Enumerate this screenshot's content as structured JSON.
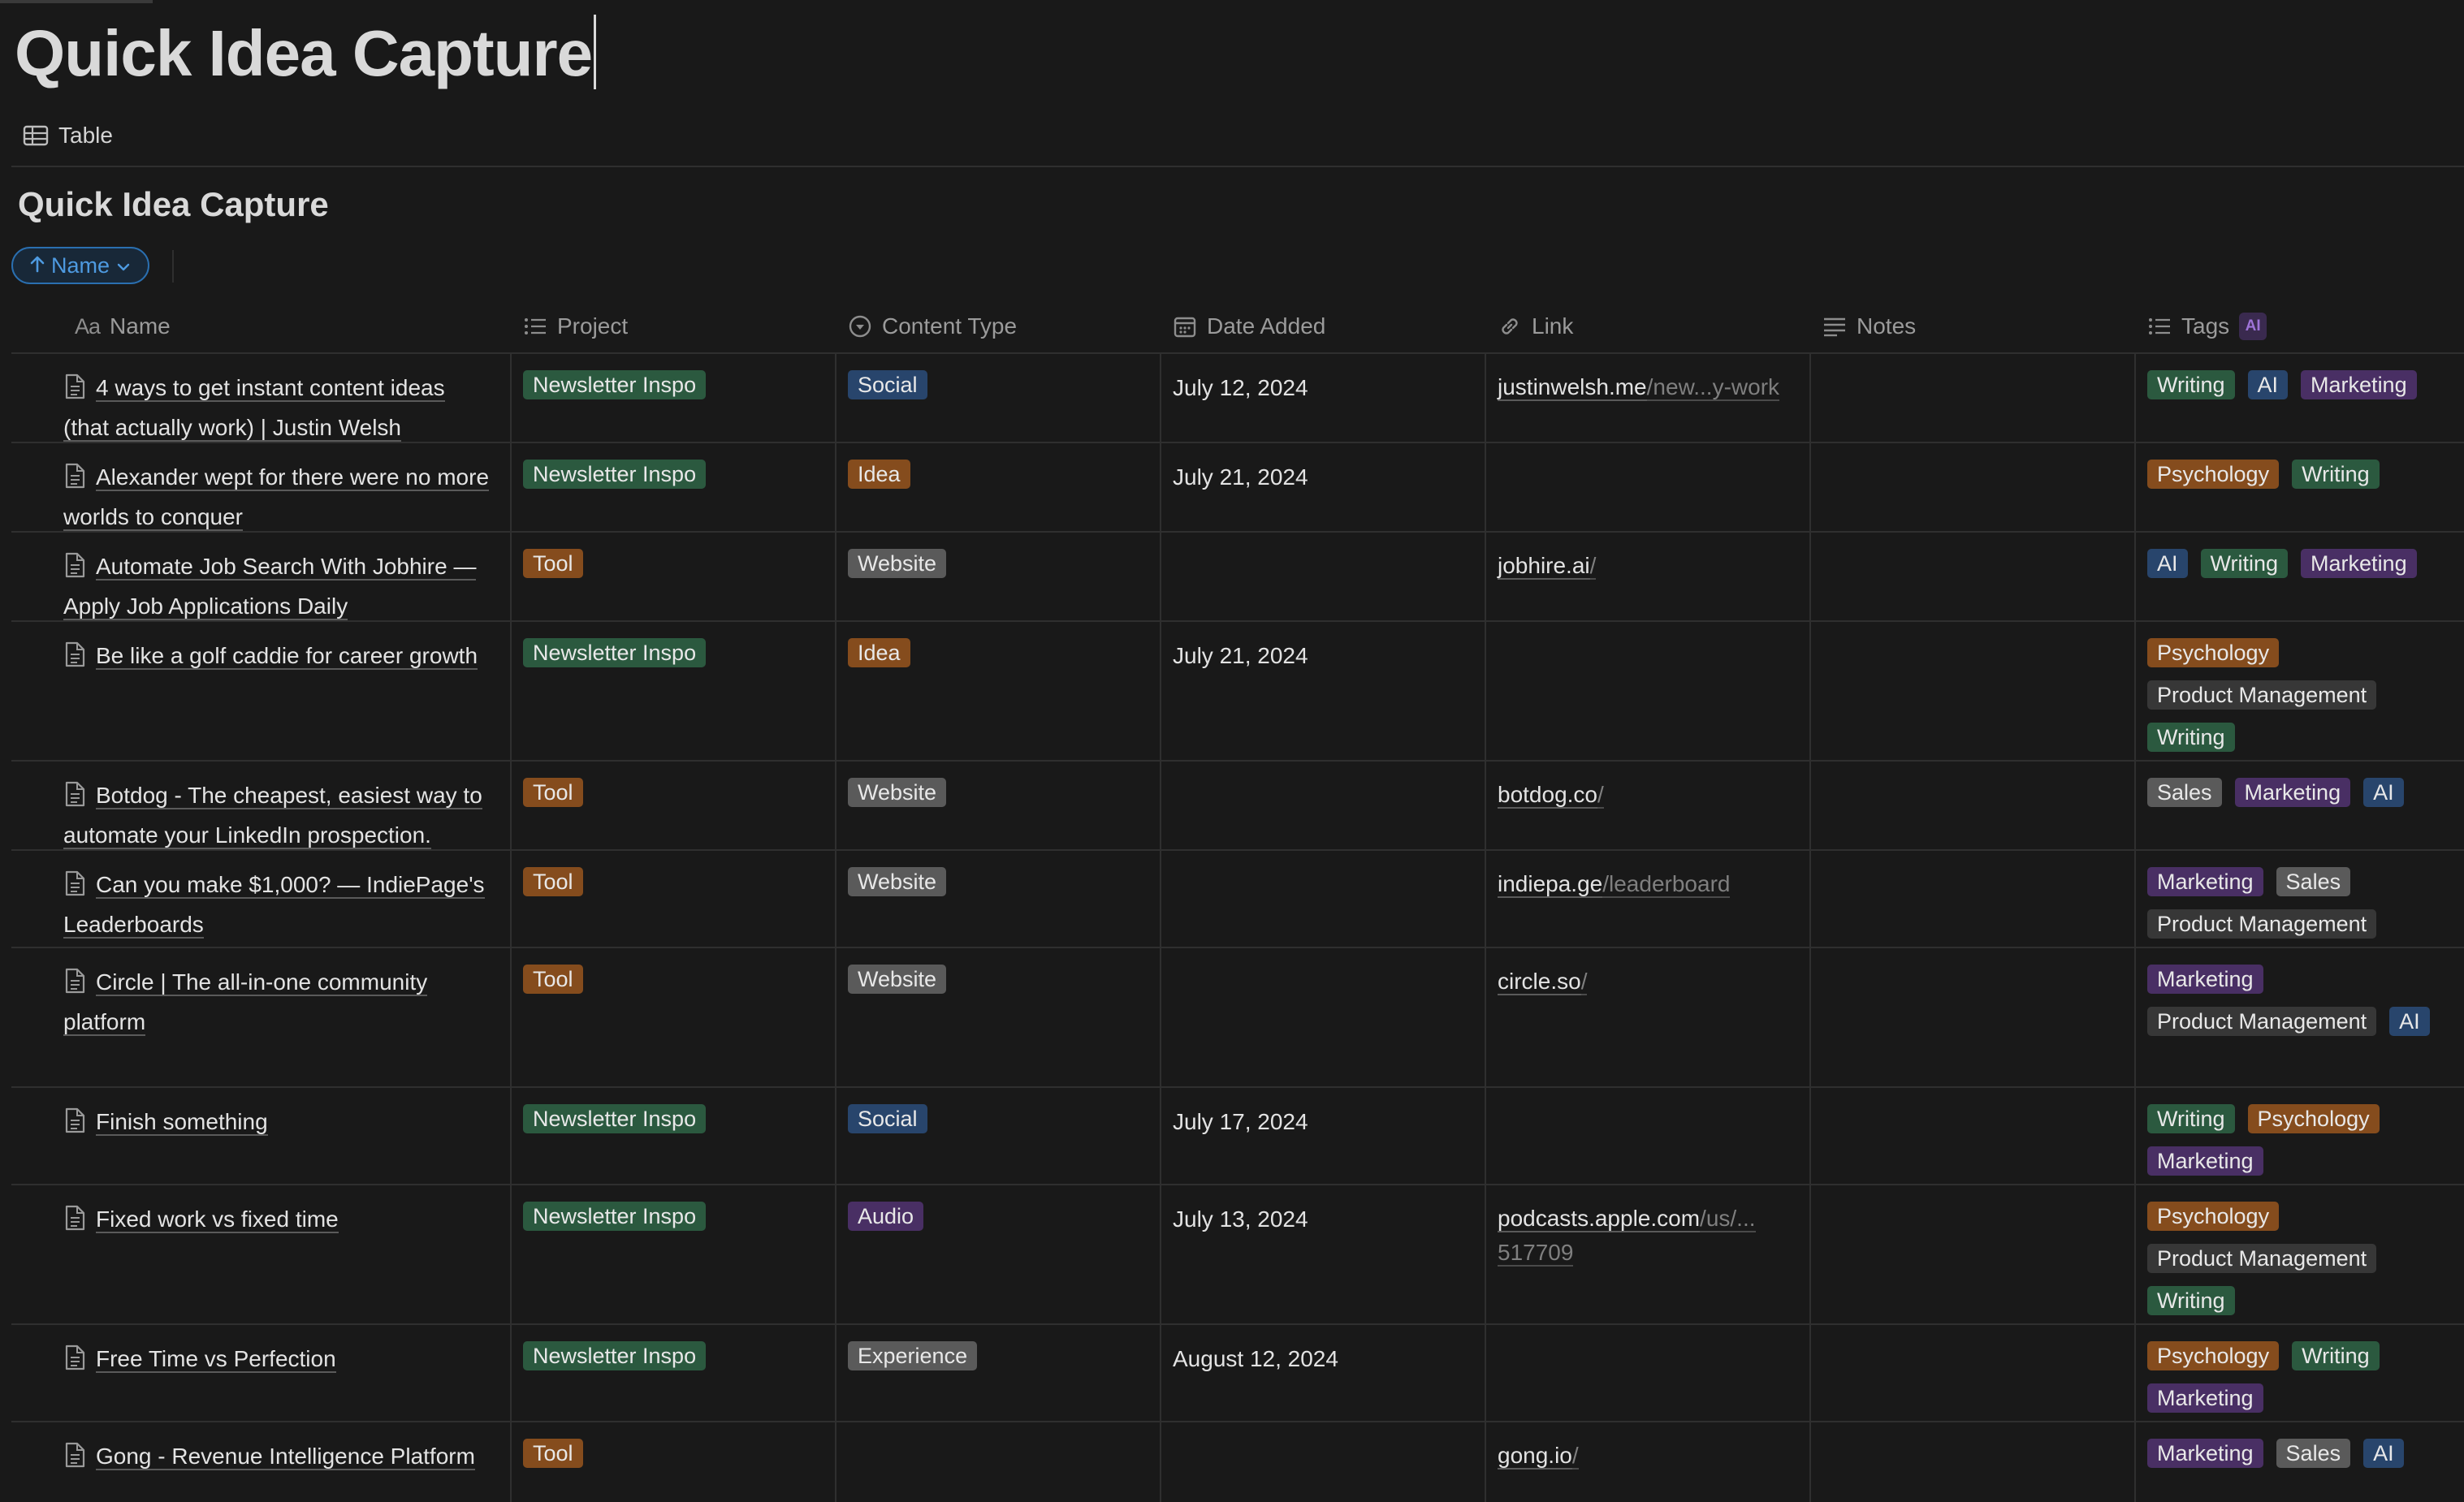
{
  "page": {
    "title": "Quick Idea Capture"
  },
  "view": {
    "label": "Table"
  },
  "database": {
    "title": "Quick Idea Capture"
  },
  "sort": {
    "label": "Name"
  },
  "columns": {
    "name": "Name",
    "name_prefix": "Aa",
    "project": "Project",
    "content_type": "Content Type",
    "date_added": "Date Added",
    "link": "Link",
    "notes": "Notes",
    "tags": "Tags",
    "tags_badge": "AI"
  },
  "colors": {
    "green": "#2b593f",
    "blue": "#28456c",
    "brown": "#603b2c",
    "orange": "#854c1d",
    "purple": "#492f64",
    "gray": "#5a5a5a",
    "dark_gray": "#373737",
    "accent": "#2f80d1"
  },
  "rows": [
    {
      "name": "4 ways to get instant content ideas (that actually work) | Justin Welsh",
      "project": "Newsletter Inspo",
      "content_type": "Social",
      "date": "July 12, 2024",
      "link_main": "justinwelsh.me",
      "link_rest": "/new...y-work",
      "tags": [
        "Writing",
        "AI",
        "Marketing"
      ]
    },
    {
      "name": "Alexander wept for there were no more worlds to conquer",
      "project": "Newsletter Inspo",
      "content_type": "Idea",
      "date": "July 21, 2024",
      "link_main": "",
      "link_rest": "",
      "tags": [
        "Psychology",
        "Writing"
      ]
    },
    {
      "name": "Automate Job Search With Jobhire — Apply Job Applications Daily",
      "project": "Tool",
      "content_type": "Website",
      "date": "",
      "link_main": "jobhire.ai",
      "link_rest": "/",
      "tags": [
        "AI",
        "Writing",
        "Marketing"
      ]
    },
    {
      "name": "Be like a golf caddie for career growth",
      "project": "Newsletter Inspo",
      "content_type": "Idea",
      "date": "July 21, 2024",
      "link_main": "",
      "link_rest": "",
      "tags": [
        "Psychology",
        "Product Management",
        "Writing"
      ]
    },
    {
      "name": "Botdog - The cheapest, easiest way to automate your LinkedIn prospection.",
      "project": "Tool",
      "content_type": "Website",
      "date": "",
      "link_main": "botdog.co",
      "link_rest": "/",
      "tags": [
        "Sales",
        "Marketing",
        "AI"
      ]
    },
    {
      "name": "Can you make $1,000? — IndiePage's Leaderboards",
      "project": "Tool",
      "content_type": "Website",
      "date": "",
      "link_main": "indiepa.ge",
      "link_rest": "/leaderboard",
      "tags": [
        "Marketing",
        "Sales",
        "Product Management"
      ]
    },
    {
      "name": "Circle | The all-in-one community platform",
      "project": "Tool",
      "content_type": "Website",
      "date": "",
      "link_main": "circle.so",
      "link_rest": "/",
      "tags": [
        "Marketing",
        "Product Management",
        "AI"
      ]
    },
    {
      "name": "Finish something",
      "project": "Newsletter Inspo",
      "content_type": "Social",
      "date": "July 17, 2024",
      "link_main": "",
      "link_rest": "",
      "tags": [
        "Writing",
        "Psychology",
        "Marketing"
      ]
    },
    {
      "name": "Fixed work vs fixed time",
      "project": "Newsletter Inspo",
      "content_type": "Audio",
      "date": "July 13, 2024",
      "link_main": "podcasts.apple.com",
      "link_rest": "/us/... 517709",
      "tags": [
        "Psychology",
        "Product Management",
        "Writing"
      ]
    },
    {
      "name": "Free Time vs Perfection",
      "project": "Newsletter Inspo",
      "content_type": "Experience",
      "date": "August 12, 2024",
      "link_main": "",
      "link_rest": "",
      "tags": [
        "Psychology",
        "Writing",
        "Marketing"
      ]
    },
    {
      "name": "Gong - Revenue Intelligence Platform",
      "project": "Tool",
      "content_type": "",
      "date": "",
      "link_main": "gong.io",
      "link_rest": "/",
      "tags": [
        "Marketing",
        "Sales",
        "AI"
      ]
    }
  ]
}
